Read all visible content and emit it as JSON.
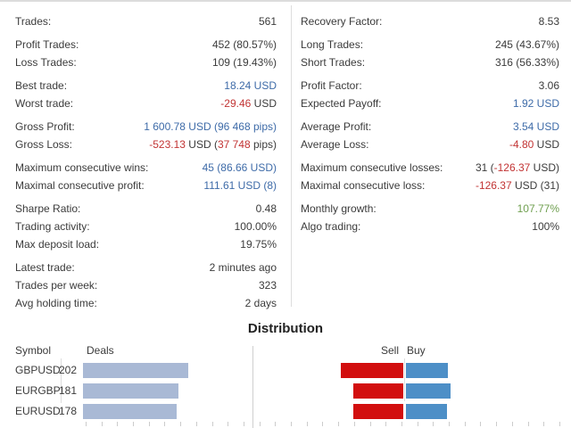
{
  "colors": {
    "text": "#3b3b3b",
    "blue": "#3e6ba8",
    "red": "#c23434",
    "green": "#6f9f4f",
    "bar_deals": "#a9b9d5",
    "bar_sell": "#d20e0e",
    "bar_buy": "#4d8fc7"
  },
  "stats": {
    "left": [
      [
        {
          "label": "Trades:",
          "parts": [
            {
              "t": "561",
              "c": "text"
            }
          ]
        }
      ],
      [
        {
          "label": "Profit Trades:",
          "parts": [
            {
              "t": "452 (80.57%)",
              "c": "text"
            }
          ]
        },
        {
          "label": "Loss Trades:",
          "parts": [
            {
              "t": "109 (19.43%)",
              "c": "text"
            }
          ]
        }
      ],
      [
        {
          "label": "Best trade:",
          "parts": [
            {
              "t": "18.24 USD",
              "c": "blue"
            }
          ]
        },
        {
          "label": "Worst trade:",
          "parts": [
            {
              "t": "-29.46",
              "c": "red"
            },
            {
              "t": " USD",
              "c": "text"
            }
          ]
        }
      ],
      [
        {
          "label": "Gross Profit:",
          "parts": [
            {
              "t": "1 600.78 USD (96 468 pips)",
              "c": "blue"
            }
          ]
        },
        {
          "label": "Gross Loss:",
          "parts": [
            {
              "t": "-523.13",
              "c": "red"
            },
            {
              "t": " USD (",
              "c": "text"
            },
            {
              "t": "37 748",
              "c": "red"
            },
            {
              "t": " pips)",
              "c": "text"
            }
          ]
        }
      ],
      [
        {
          "label": "Maximum consecutive wins:",
          "parts": [
            {
              "t": "45 (86.66 USD)",
              "c": "blue"
            }
          ]
        },
        {
          "label": "Maximal consecutive profit:",
          "parts": [
            {
              "t": "111.61 USD (8)",
              "c": "blue"
            }
          ]
        }
      ],
      [
        {
          "label": "Sharpe Ratio:",
          "parts": [
            {
              "t": "0.48",
              "c": "text"
            }
          ]
        },
        {
          "label": "Trading activity:",
          "parts": [
            {
              "t": "100.00%",
              "c": "text"
            }
          ]
        },
        {
          "label": "Max deposit load:",
          "parts": [
            {
              "t": "19.75%",
              "c": "text"
            }
          ]
        }
      ],
      [
        {
          "label": "Latest trade:",
          "parts": [
            {
              "t": "2 minutes ago",
              "c": "text"
            }
          ]
        },
        {
          "label": "Trades per week:",
          "parts": [
            {
              "t": "323",
              "c": "text"
            }
          ]
        },
        {
          "label": "Avg holding time:",
          "parts": [
            {
              "t": "2 days",
              "c": "text"
            }
          ]
        }
      ]
    ],
    "right": [
      [
        {
          "label": "Recovery Factor:",
          "parts": [
            {
              "t": "8.53",
              "c": "text"
            }
          ]
        }
      ],
      [
        {
          "label": "Long Trades:",
          "parts": [
            {
              "t": "245 (43.67%)",
              "c": "text"
            }
          ]
        },
        {
          "label": "Short Trades:",
          "parts": [
            {
              "t": "316 (56.33%)",
              "c": "text"
            }
          ]
        }
      ],
      [
        {
          "label": "Profit Factor:",
          "parts": [
            {
              "t": "3.06",
              "c": "text"
            }
          ]
        },
        {
          "label": "Expected Payoff:",
          "parts": [
            {
              "t": "1.92 USD",
              "c": "blue"
            }
          ]
        }
      ],
      [
        {
          "label": "Average Profit:",
          "parts": [
            {
              "t": "3.54 USD",
              "c": "blue"
            }
          ]
        },
        {
          "label": "Average Loss:",
          "parts": [
            {
              "t": "-4.80",
              "c": "red"
            },
            {
              "t": " USD",
              "c": "text"
            }
          ]
        }
      ],
      [
        {
          "label": "Maximum consecutive losses:",
          "parts": [
            {
              "t": "31 (",
              "c": "text"
            },
            {
              "t": "-126.37",
              "c": "red"
            },
            {
              "t": " USD)",
              "c": "text"
            }
          ]
        },
        {
          "label": "Maximal consecutive loss:",
          "parts": [
            {
              "t": "-126.37",
              "c": "red"
            },
            {
              "t": " USD (31)",
              "c": "text"
            }
          ]
        }
      ],
      [
        {
          "label": "Monthly growth:",
          "parts": [
            {
              "t": "107.77%",
              "c": "green"
            }
          ]
        },
        {
          "label": "Algo trading:",
          "parts": [
            {
              "t": "100%",
              "c": "text"
            }
          ]
        }
      ]
    ]
  },
  "distribution": {
    "title": "Distribution",
    "headers": {
      "symbol": "Symbol",
      "deals": "Deals",
      "sell": "Sell",
      "buy": "Buy"
    },
    "rows": [
      {
        "symbol": "GBPUSD",
        "deals": "202",
        "deals_w": 118,
        "sell_w": 70,
        "buy_w": 47
      },
      {
        "symbol": "EURGBP",
        "deals": "181",
        "deals_w": 107,
        "sell_w": 56,
        "buy_w": 50
      },
      {
        "symbol": "EURUSD",
        "deals": "178",
        "deals_w": 105,
        "sell_w": 56,
        "buy_w": 46
      }
    ],
    "axis": {
      "tick_start_x": 96,
      "tick_step": 17.7,
      "tick_end_x": 638
    }
  }
}
